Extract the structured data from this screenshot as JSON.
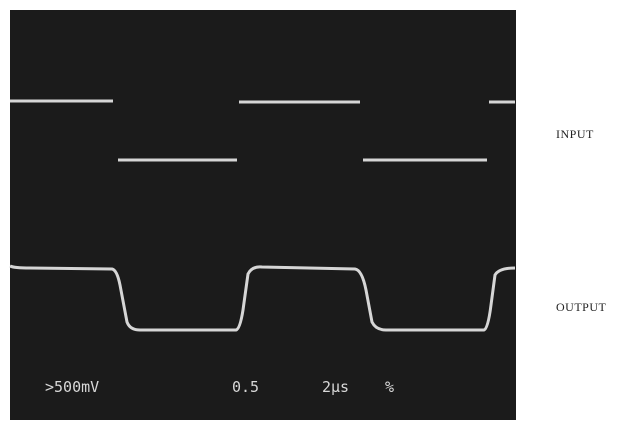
{
  "screen": {
    "readouts": [
      ">500mV",
      "0.5",
      "2µs",
      "%"
    ]
  },
  "labels": {
    "input": "INPUT",
    "output": "OUTPUT"
  }
}
